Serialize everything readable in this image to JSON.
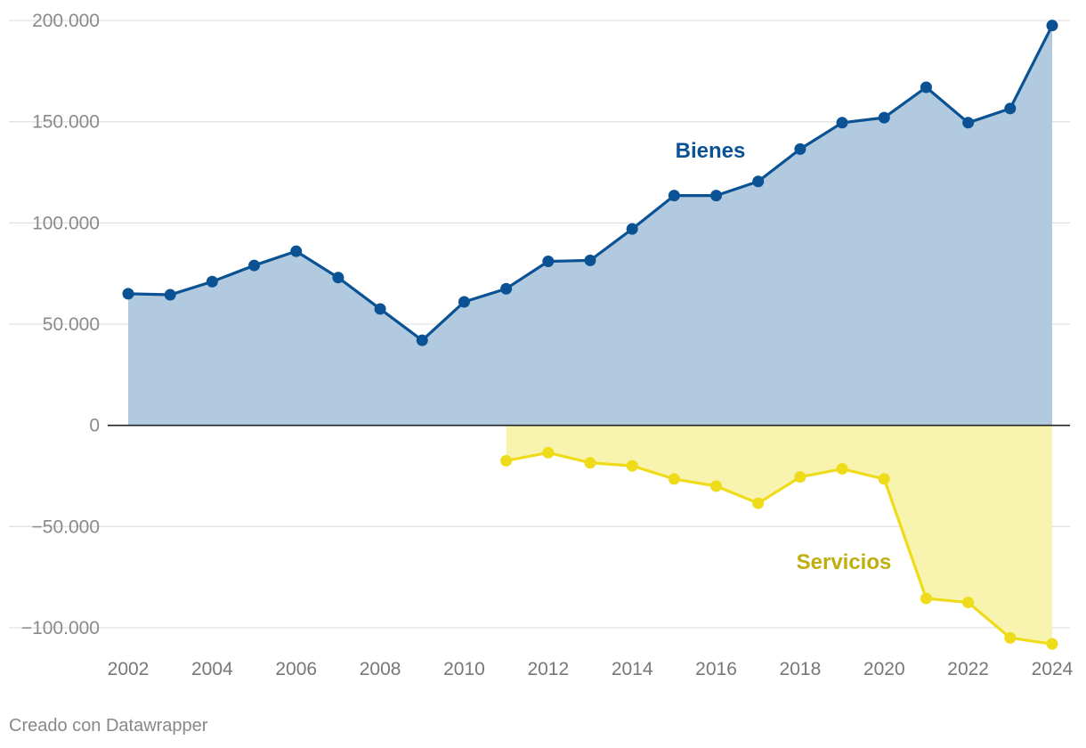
{
  "chart_data": {
    "type": "area",
    "x": [
      2002,
      2003,
      2004,
      2005,
      2006,
      2007,
      2008,
      2009,
      2010,
      2011,
      2012,
      2013,
      2014,
      2015,
      2016,
      2017,
      2018,
      2019,
      2020,
      2021,
      2022,
      2023,
      2024
    ],
    "series": [
      {
        "name": "Bienes",
        "color": "#0a5293",
        "fill": "#b1cadf",
        "values": [
          65000,
          64500,
          71000,
          79000,
          86000,
          73000,
          57500,
          42000,
          61000,
          67500,
          81000,
          81500,
          97000,
          113500,
          113500,
          120500,
          136500,
          149500,
          152000,
          167000,
          149500,
          156500,
          197500
        ]
      },
      {
        "name": "Servicios",
        "color": "#eedb19",
        "fill": "#f8f4b0",
        "label_color": "#bfae0d",
        "values": [
          null,
          null,
          null,
          null,
          null,
          null,
          null,
          null,
          null,
          -17500,
          -13500,
          -18500,
          -20000,
          -26500,
          -30000,
          -38500,
          -25500,
          -21500,
          -26500,
          -85500,
          -87500,
          -105000,
          -108000
        ]
      }
    ],
    "y_ticks": [
      {
        "value": 200000,
        "label": "200.000"
      },
      {
        "value": 150000,
        "label": "150.000"
      },
      {
        "value": 100000,
        "label": "100.000"
      },
      {
        "value": 50000,
        "label": "50.000"
      },
      {
        "value": 0,
        "label": "0"
      },
      {
        "value": -50000,
        "label": "−50.000"
      },
      {
        "value": -100000,
        "label": "−100.000"
      }
    ],
    "x_ticks": [
      2002,
      2004,
      2006,
      2008,
      2010,
      2012,
      2014,
      2016,
      2018,
      2020,
      2022,
      2024
    ],
    "ylim": [
      -110000,
      210000
    ],
    "xlim": [
      2002,
      2024
    ],
    "grid": true,
    "title": "",
    "xlabel": "",
    "ylabel": ""
  },
  "footer": {
    "credit": "Creado con Datawrapper"
  }
}
